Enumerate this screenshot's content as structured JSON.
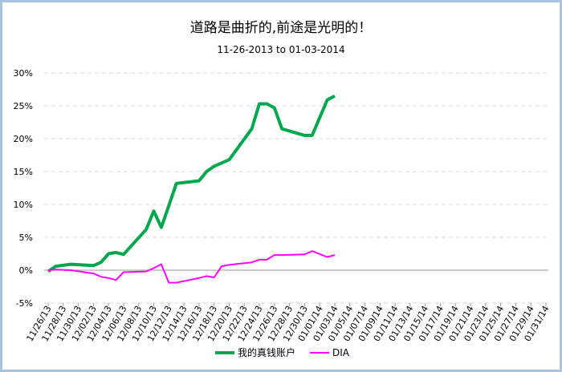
{
  "chart_data": {
    "type": "line",
    "title": "道路是曲折的,前途是光明的！",
    "subtitle": "11-26-2013  to   01-03-2014",
    "x": [
      "11/26/13",
      "11/27/13",
      "11/29/13",
      "12/02/13",
      "12/03/13",
      "12/04/13",
      "12/05/13",
      "12/06/13",
      "12/09/13",
      "12/10/13",
      "12/11/13",
      "12/12/13",
      "12/13/13",
      "12/16/13",
      "12/17/13",
      "12/18/13",
      "12/19/13",
      "12/20/13",
      "12/23/13",
      "12/24/13",
      "12/25/13",
      "12/26/13",
      "12/27/13",
      "12/30/13",
      "12/31/13",
      "01/02/14",
      "01/03/14"
    ],
    "series": [
      {
        "name": "我的真钱账户",
        "color": "#00a550",
        "values": [
          -0.2,
          0.6,
          0.9,
          0.7,
          1.2,
          2.5,
          2.7,
          2.4,
          6.2,
          9.0,
          6.5,
          9.8,
          13.2,
          13.6,
          15.0,
          15.8,
          16.3,
          16.8,
          21.5,
          25.3,
          25.3,
          24.7,
          21.5,
          20.5,
          20.5,
          25.9,
          26.5
        ]
      },
      {
        "name": "DIA",
        "color": "#ff00ff",
        "values": [
          0.0,
          0.1,
          0.0,
          -0.5,
          -1.0,
          -1.2,
          -1.5,
          -0.3,
          -0.2,
          0.3,
          0.9,
          -1.9,
          -1.9,
          -1.2,
          -0.9,
          -1.1,
          0.6,
          0.8,
          1.2,
          1.6,
          1.6,
          2.3,
          2.3,
          2.4,
          2.9,
          2.0,
          2.3
        ]
      }
    ],
    "xlim": [
      "11/26/13",
      "01/31/14"
    ],
    "xticks": [
      "11/26/13",
      "11/28/13",
      "11/30/13",
      "12/02/13",
      "12/04/13",
      "12/06/13",
      "12/08/13",
      "12/10/13",
      "12/12/13",
      "12/14/13",
      "12/16/13",
      "12/18/13",
      "12/20/13",
      "12/22/13",
      "12/24/13",
      "12/26/13",
      "12/28/13",
      "12/30/13",
      "01/01/14",
      "01/03/14",
      "01/05/14",
      "01/07/14",
      "01/09/14",
      "01/11/14",
      "01/13/14",
      "01/15/14",
      "01/17/14",
      "01/19/14",
      "01/21/14",
      "01/23/14",
      "01/25/14",
      "01/27/14",
      "01/29/14",
      "01/31/14"
    ],
    "ylim": [
      -5,
      30
    ],
    "yticks": [
      {
        "value": -5,
        "label": "-5%"
      },
      {
        "value": 0,
        "label": "0%"
      },
      {
        "value": 5,
        "label": "5%"
      },
      {
        "value": 10,
        "label": "10%"
      },
      {
        "value": 15,
        "label": "15%"
      },
      {
        "value": 20,
        "label": "20%"
      },
      {
        "value": 25,
        "label": "25%"
      },
      {
        "value": 30,
        "label": "30%"
      }
    ],
    "grid": true,
    "legend": "bottom"
  }
}
